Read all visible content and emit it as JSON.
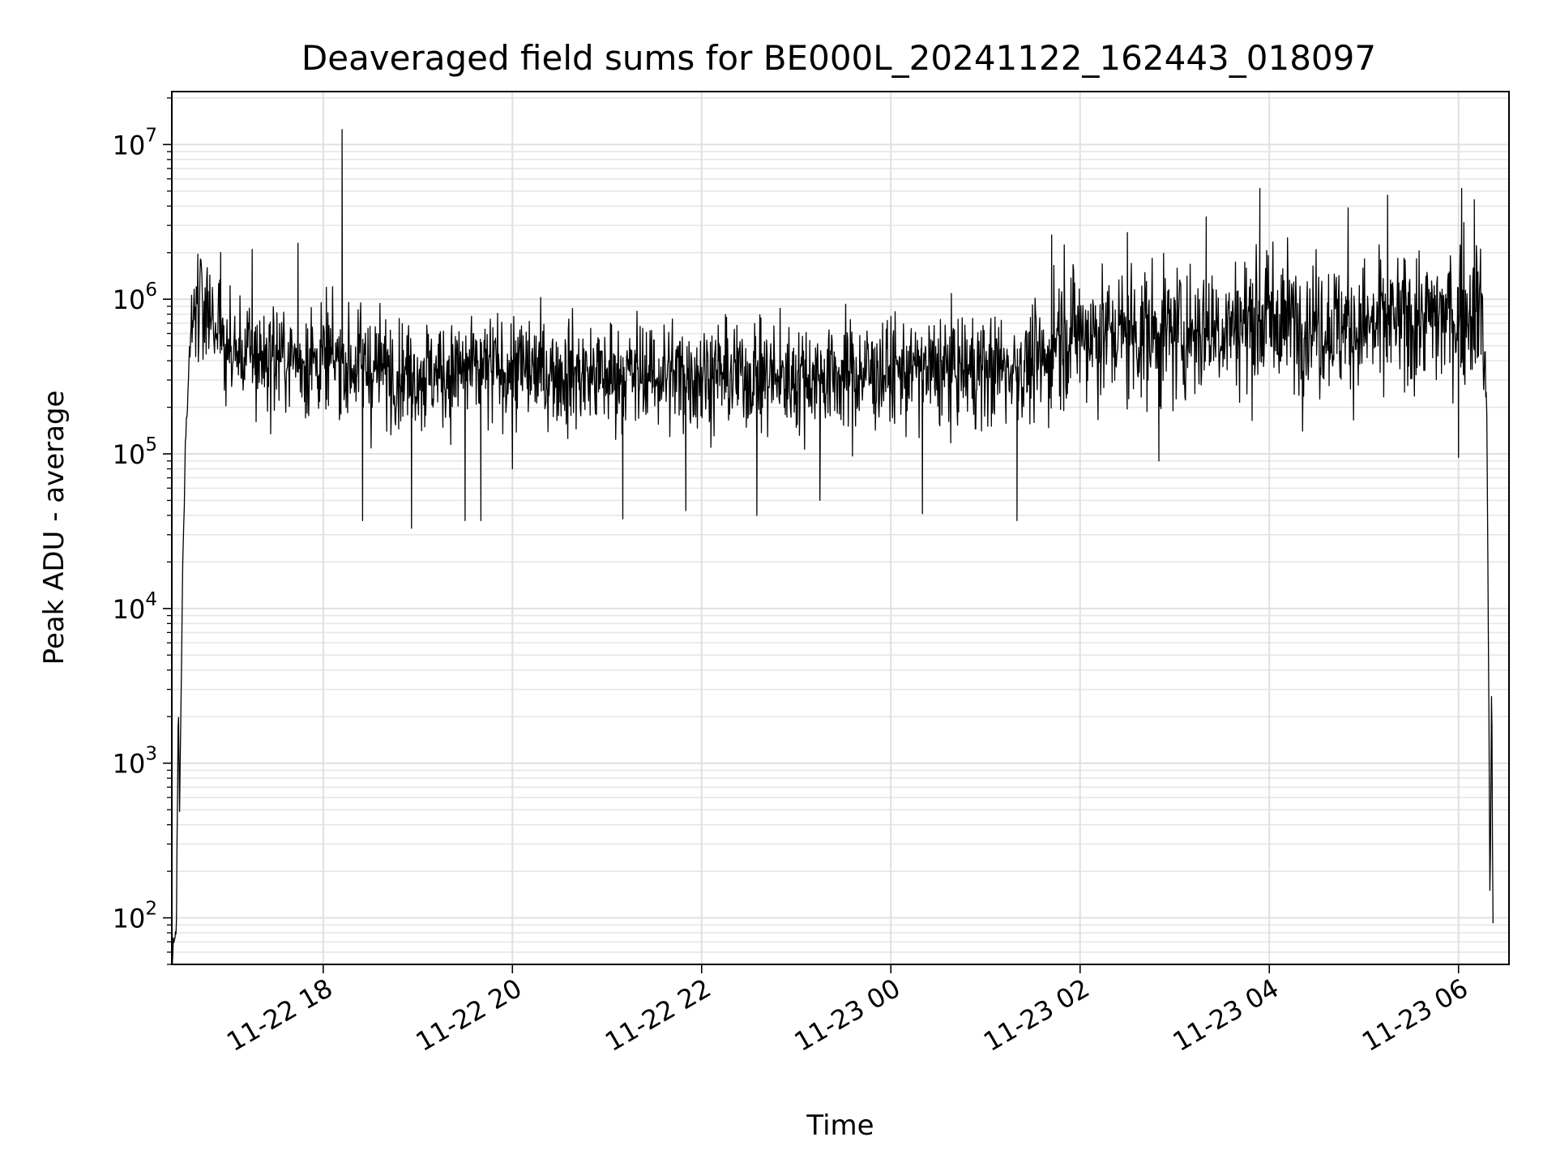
{
  "chart_data": {
    "type": "line",
    "title": "Deaveraged field sums for BE000L_20241122_162443_018097",
    "xlabel": "Time",
    "ylabel": "Peak ADU - average",
    "yscale": "log",
    "ylim": [
      50,
      22000000
    ],
    "xlim": [
      "2024-11-22 16:24",
      "2024-11-23 06:32"
    ],
    "grid": true,
    "x_ticks": [
      {
        "t": "2024-11-22 18:00",
        "label": "11-22 18"
      },
      {
        "t": "2024-11-22 20:00",
        "label": "11-22 20"
      },
      {
        "t": "2024-11-22 22:00",
        "label": "11-22 22"
      },
      {
        "t": "2024-11-23 00:00",
        "label": "11-23 00"
      },
      {
        "t": "2024-11-23 02:00",
        "label": "11-23 02"
      },
      {
        "t": "2024-11-23 04:00",
        "label": "11-23 04"
      },
      {
        "t": "2024-11-23 06:00",
        "label": "11-23 06"
      }
    ],
    "y_ticks": [
      {
        "v": 100,
        "base": "10",
        "exp": "2"
      },
      {
        "v": 1000,
        "base": "10",
        "exp": "3"
      },
      {
        "v": 10000,
        "base": "10",
        "exp": "4"
      },
      {
        "v": 100000,
        "base": "10",
        "exp": "5"
      },
      {
        "v": 1000000,
        "base": "10",
        "exp": "6"
      },
      {
        "v": 10000000,
        "base": "10",
        "exp": "7"
      }
    ],
    "series": [
      {
        "color": "#000000",
        "envelope": [
          {
            "t": "2024-11-22 16:24",
            "y": 50
          },
          {
            "t": "2024-11-22 16:27",
            "y": 100
          },
          {
            "t": "2024-11-22 16:28",
            "y": 2200
          },
          {
            "t": "2024-11-22 16:29",
            "y": 500
          },
          {
            "t": "2024-11-22 16:30",
            "y": 3500
          },
          {
            "t": "2024-11-22 16:31",
            "y": 25000
          },
          {
            "t": "2024-11-22 16:33",
            "y": 150000
          },
          {
            "t": "2024-11-22 16:36",
            "y": 600000
          },
          {
            "t": "2024-11-22 16:40",
            "y": 1000000
          },
          {
            "t": "2024-11-22 16:50",
            "y": 800000
          },
          {
            "t": "2024-11-22 17:00",
            "y": 450000
          },
          {
            "t": "2024-11-22 18:00",
            "y": 400000
          },
          {
            "t": "2024-11-22 19:00",
            "y": 330000
          },
          {
            "t": "2024-11-22 20:00",
            "y": 350000
          },
          {
            "t": "2024-11-22 21:00",
            "y": 320000
          },
          {
            "t": "2024-11-22 22:00",
            "y": 330000
          },
          {
            "t": "2024-11-22 23:00",
            "y": 310000
          },
          {
            "t": "2024-11-23 00:00",
            "y": 340000
          },
          {
            "t": "2024-11-23 01:00",
            "y": 350000
          },
          {
            "t": "2024-11-23 01:40",
            "y": 380000
          },
          {
            "t": "2024-11-23 01:45",
            "y": 650000
          },
          {
            "t": "2024-11-23 02:00",
            "y": 600000
          },
          {
            "t": "2024-11-23 03:00",
            "y": 600000
          },
          {
            "t": "2024-11-23 04:00",
            "y": 750000
          },
          {
            "t": "2024-11-23 05:00",
            "y": 650000
          },
          {
            "t": "2024-11-23 06:00",
            "y": 800000
          },
          {
            "t": "2024-11-23 06:15",
            "y": 900000
          },
          {
            "t": "2024-11-23 06:18",
            "y": 150000
          },
          {
            "t": "2024-11-23 06:19",
            "y": 6000
          },
          {
            "t": "2024-11-23 06:20",
            "y": 100
          },
          {
            "t": "2024-11-23 06:21",
            "y": 4000
          },
          {
            "t": "2024-11-23 06:22",
            "y": 50
          }
        ],
        "noise_dex": 0.25,
        "peaks": [
          {
            "t": "2024-11-22 18:12",
            "y": 12500000
          },
          {
            "t": "2024-11-22 17:44",
            "y": 2300000
          },
          {
            "t": "2024-11-22 17:15",
            "y": 2100000
          },
          {
            "t": "2024-11-22 16:55",
            "y": 2000000
          },
          {
            "t": "2024-11-23 01:42",
            "y": 2600000
          },
          {
            "t": "2024-11-23 02:30",
            "y": 2700000
          },
          {
            "t": "2024-11-23 03:20",
            "y": 3400000
          },
          {
            "t": "2024-11-23 03:54",
            "y": 5200000
          },
          {
            "t": "2024-11-23 04:50",
            "y": 3900000
          },
          {
            "t": "2024-11-23 05:15",
            "y": 4700000
          },
          {
            "t": "2024-11-23 06:02",
            "y": 5200000
          },
          {
            "t": "2024-11-23 06:10",
            "y": 4400000
          }
        ],
        "dips": [
          {
            "t": "2024-11-22 18:25",
            "y": 37000
          },
          {
            "t": "2024-11-22 18:56",
            "y": 33000
          },
          {
            "t": "2024-11-22 19:30",
            "y": 37000
          },
          {
            "t": "2024-11-22 19:40",
            "y": 37000
          },
          {
            "t": "2024-11-22 20:00",
            "y": 80000
          },
          {
            "t": "2024-11-22 21:10",
            "y": 38000
          },
          {
            "t": "2024-11-22 21:50",
            "y": 43000
          },
          {
            "t": "2024-11-22 22:35",
            "y": 40000
          },
          {
            "t": "2024-11-22 23:15",
            "y": 50000
          },
          {
            "t": "2024-11-23 00:20",
            "y": 41000
          },
          {
            "t": "2024-11-23 01:20",
            "y": 37000
          },
          {
            "t": "2024-11-23 02:50",
            "y": 90000
          },
          {
            "t": "2024-11-23 06:00",
            "y": 95000
          }
        ]
      }
    ]
  }
}
